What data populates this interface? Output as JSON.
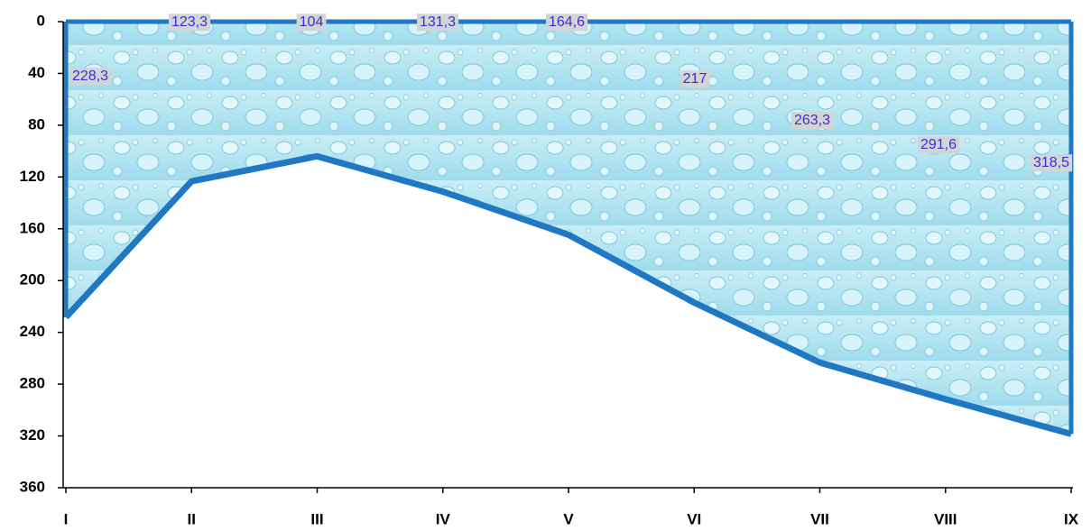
{
  "chart_data": {
    "type": "area",
    "categories": [
      "I",
      "II",
      "III",
      "IV",
      "V",
      "VI",
      "VII",
      "VIII",
      "IX"
    ],
    "series": [
      {
        "color": "#1f78c1",
        "values": [
          228.3,
          123.3,
          104,
          131.3,
          164.6,
          217,
          263.3,
          291.6,
          318.5
        ],
        "value_labels": [
          "228,3",
          "123,3",
          "104",
          "131,3",
          "164,6",
          "217",
          "263,3",
          "291,6",
          "318,5"
        ]
      }
    ],
    "ylim": [
      0,
      360
    ],
    "y_inverted": true,
    "yticks": [
      0,
      40,
      80,
      120,
      160,
      200,
      240,
      280,
      320,
      360
    ]
  }
}
